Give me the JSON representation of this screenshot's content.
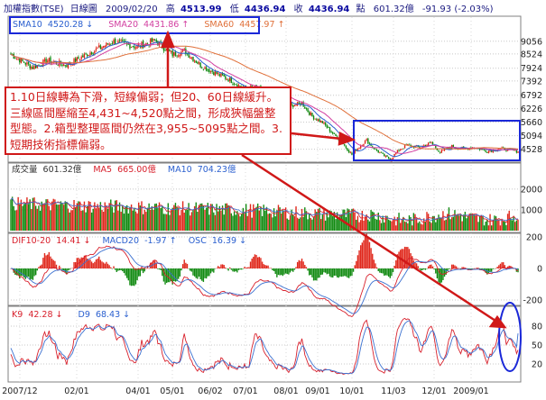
{
  "header": {
    "title": "加權指數(TSE)",
    "period": "日線圖",
    "date": "2009/02/20",
    "high_label": "高",
    "high": "4513.99",
    "low_label": "低",
    "low": "4436.94",
    "close_label": "收",
    "close": "4436.94",
    "unit": "點",
    "volume": "601.32億",
    "change": "-91.93 (-2.03%)"
  },
  "annotation": "1.10日線轉為下滑，短線偏弱；但20、60日線緩升。三線區間壓縮至4,431~4,520點之間，形成狹幅盤整型態。2.箱型整理區間仍然在3,955~5095點之間。3.短期技術指標偏弱。",
  "colors": {
    "up": "#e0281c",
    "down": "#118a11",
    "sma10": "#2a5fcf",
    "sma20": "#d23fa0",
    "sma60": "#e0703a",
    "highlight": "#1a28d8",
    "annotation": "#d01818",
    "k": "#d8202c",
    "d": "#3a70d0"
  },
  "chart_data": [
    {
      "type": "candlestick",
      "title": "加權指數(TSE) 日線圖",
      "x_ticks": [
        "2007/12",
        "02/01",
        "04/01",
        "05/01",
        "06/02",
        "07/01",
        "08/01",
        "09/01",
        "10/01",
        "11/03",
        "12/01",
        "2009/01"
      ],
      "y_ticks": [
        9056,
        8524,
        7924,
        7392,
        6792,
        6226,
        5660,
        5094,
        4528
      ],
      "ylim": [
        4060,
        9350
      ],
      "legend": [
        {
          "name": "SMA10",
          "value": "4520.28",
          "arrow": "down"
        },
        {
          "name": "SMA20",
          "value": "4431.86",
          "arrow": "up"
        },
        {
          "name": "SMA60",
          "value": "4457.97",
          "arrow": "up"
        }
      ],
      "close_anchors": [
        [
          0,
          8500
        ],
        [
          15,
          7950
        ],
        [
          25,
          8250
        ],
        [
          38,
          8050
        ],
        [
          55,
          8620
        ],
        [
          70,
          9050
        ],
        [
          85,
          8820
        ],
        [
          98,
          9080
        ],
        [
          110,
          8500
        ],
        [
          118,
          8650
        ],
        [
          130,
          8000
        ],
        [
          140,
          7700
        ],
        [
          150,
          7400
        ],
        [
          160,
          7000
        ],
        [
          165,
          7150
        ],
        [
          175,
          6900
        ],
        [
          180,
          6700
        ],
        [
          190,
          6350
        ],
        [
          198,
          6450
        ],
        [
          205,
          5900
        ],
        [
          212,
          5650
        ],
        [
          218,
          5250
        ],
        [
          224,
          4900
        ],
        [
          228,
          4600
        ],
        [
          232,
          4300
        ],
        [
          238,
          4700
        ],
        [
          242,
          4900
        ],
        [
          248,
          4500
        ],
        [
          254,
          4250
        ],
        [
          258,
          4100
        ],
        [
          264,
          4500
        ],
        [
          270,
          4700
        ],
        [
          278,
          4600
        ],
        [
          286,
          4800
        ],
        [
          292,
          4400
        ],
        [
          300,
          4650
        ],
        [
          308,
          4550
        ],
        [
          316,
          4600
        ],
        [
          324,
          4450
        ],
        [
          332,
          4550
        ],
        [
          340,
          4500
        ],
        [
          345,
          4437
        ]
      ]
    },
    {
      "type": "bar",
      "title": "成交量",
      "y_ticks": [
        2000,
        1000
      ],
      "legend": [
        {
          "name": "成交量",
          "value": "601.32億"
        },
        {
          "name": "MA5",
          "value": "665.00億"
        },
        {
          "name": "MA10",
          "value": "704.23億"
        }
      ]
    },
    {
      "type": "bar",
      "title": "MACD",
      "y_ticks": [
        200,
        0,
        -200
      ],
      "legend": [
        {
          "name": "DIF10-20",
          "value": "14.41",
          "arrow": "down"
        },
        {
          "name": "MACD20",
          "value": "-1.97",
          "arrow": "up"
        },
        {
          "name": "OSC",
          "value": "16.39",
          "arrow": "down"
        }
      ]
    },
    {
      "type": "line",
      "title": "KD",
      "y_ticks": [
        80,
        50,
        20
      ],
      "legend": [
        {
          "name": "K9",
          "value": "42.28",
          "arrow": "down"
        },
        {
          "name": "D9",
          "value": "68.43",
          "arrow": "down"
        }
      ]
    }
  ]
}
